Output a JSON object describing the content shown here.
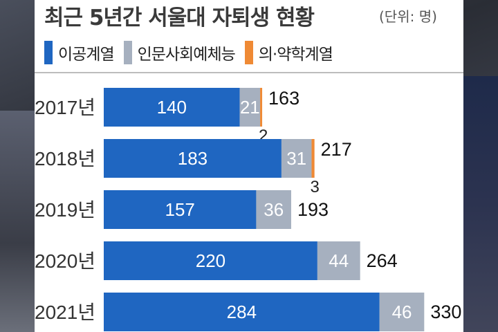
{
  "title": "최근 5년간 서울대 자퇴생 현황",
  "unit": "(단위: 명)",
  "colors": {
    "engineering": "#1f66c1",
    "humanities": "#a6b0bf",
    "medical": "#ef8a35",
    "panel": "#ffffff"
  },
  "legend": [
    {
      "label": "이공계열",
      "color": "#1f66c1"
    },
    {
      "label": "인문사회예체능",
      "color": "#a6b0bf"
    },
    {
      "label": "의·약학계열",
      "color": "#ef8a35"
    }
  ],
  "chart_data": {
    "type": "bar",
    "orientation": "horizontal",
    "stacked": true,
    "title": "최근 5년간 서울대 자퇴생 현황",
    "unit": "(단위: 명)",
    "categories": [
      "2017년",
      "2018년",
      "2019년",
      "2020년",
      "2021년"
    ],
    "series": [
      {
        "name": "이공계열",
        "values": [
          140,
          183,
          157,
          220,
          284
        ]
      },
      {
        "name": "인문사회예체능",
        "values": [
          21,
          31,
          36,
          44,
          46
        ]
      },
      {
        "name": "의·약학계열",
        "values": [
          2,
          3,
          0,
          0,
          0
        ]
      }
    ],
    "totals": [
      163,
      217,
      193,
      264,
      330
    ],
    "legend_position": "top",
    "grid": false
  }
}
